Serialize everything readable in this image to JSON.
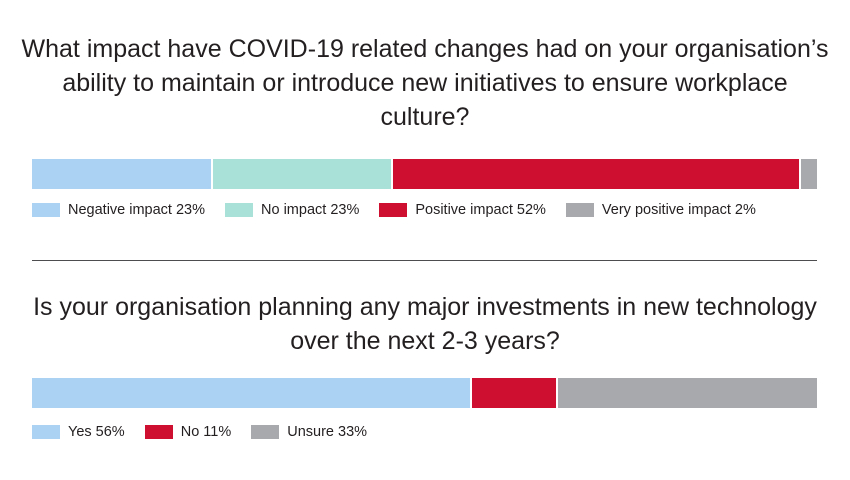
{
  "chart_data": [
    {
      "type": "bar",
      "orientation": "horizontal-stacked-100",
      "title": "What impact have COVID-19 related changes had on your organisation’s ability to maintain or introduce new initiatives to ensure workplace culture?",
      "categories": [
        "Negative impact",
        "No impact",
        "Positive impact",
        "Very positive impact"
      ],
      "values": [
        23,
        23,
        52,
        2
      ],
      "legend_labels": [
        "Negative impact 23%",
        "No impact 23%",
        "Positive impact 52%",
        "Very positive impact 2%"
      ],
      "colors": [
        "#abd1f3",
        "#a9e0d8",
        "#cf0f2f",
        "#a7a9ac"
      ],
      "legend": "bottom"
    },
    {
      "type": "bar",
      "orientation": "horizontal-stacked-100",
      "title": "Is your organisation planning any major investments in new technology over the next 2-3 years?",
      "categories": [
        "Yes",
        "No",
        "Unsure"
      ],
      "values": [
        56,
        11,
        33
      ],
      "legend_labels": [
        "Yes 56%",
        "No 11%",
        "Unsure 33%"
      ],
      "colors": [
        "#abd1f3",
        "#cf0f2f",
        "#a7a9ac"
      ],
      "legend": "bottom"
    }
  ]
}
